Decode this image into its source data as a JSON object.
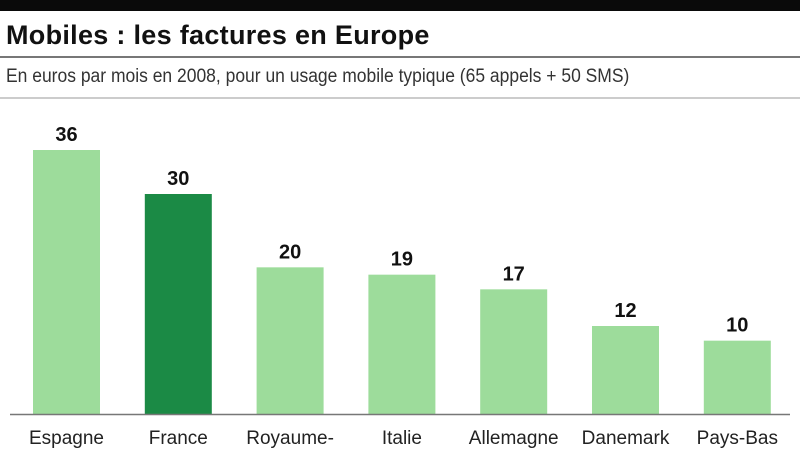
{
  "chart_data": {
    "type": "bar",
    "title": "Mobiles : les factures en Europe",
    "subtitle": "En euros par mois en 2008, pour un usage mobile typique (65 appels + 50 SMS)",
    "categories": [
      "Espagne",
      "France",
      "Royaume-",
      "Italie",
      "Allemagne",
      "Danemark",
      "Pays-Bas"
    ],
    "values": [
      36,
      30,
      20,
      19,
      17,
      12,
      10
    ],
    "highlight": "France",
    "colors": {
      "default": "#9ddc9b",
      "highlight": "#1b8a45",
      "baseline": "#777777"
    },
    "xlabel": "",
    "ylabel": "",
    "ylim": [
      0,
      36
    ],
    "grid": false
  }
}
